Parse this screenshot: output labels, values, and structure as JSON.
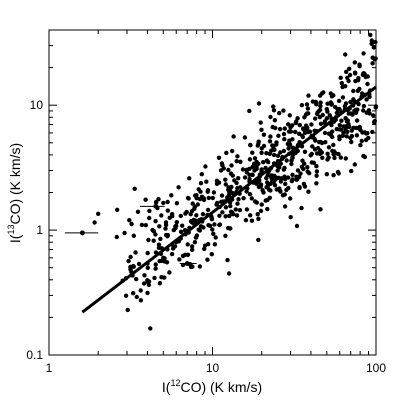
{
  "chart_data": {
    "type": "scatter",
    "title": "",
    "xlabel": {
      "prefix": "I(",
      "sup": "12",
      "suffix": "CO) (K km/s)"
    },
    "ylabel": {
      "prefix": "I(",
      "sup": "13",
      "suffix": "CO) (K km/s)"
    },
    "x_scale": "log",
    "y_scale": "log",
    "xlim": [
      1,
      100
    ],
    "ylim": [
      0.1,
      40
    ],
    "x_ticks": [
      {
        "value": 1,
        "label": "1"
      },
      {
        "value": 10,
        "label": "10"
      },
      {
        "value": 100,
        "label": "100"
      }
    ],
    "y_ticks": [
      {
        "value": 0.1,
        "label": "0.1"
      },
      {
        "value": 1,
        "label": "1"
      },
      {
        "value": 10,
        "label": "10"
      }
    ],
    "fit_line": {
      "x": [
        1.6,
        100
      ],
      "y": [
        0.22,
        14
      ]
    },
    "error_bars": [
      {
        "x": 1.6,
        "y": 0.95,
        "x_low": 1.25,
        "x_high": 2.0,
        "y_low": 0.91,
        "y_high": 0.99
      },
      {
        "x": 4.5,
        "y": 1.55,
        "x_low": 3.6,
        "x_high": 5.1,
        "y_low": 1.52,
        "y_high": 1.58
      },
      {
        "x": 7.0,
        "y": 0.54,
        "x_low": 6.3,
        "x_high": 8.0,
        "y_low": 0.53,
        "y_high": 0.55
      }
    ],
    "cloud": {
      "n": 620,
      "x_min": 2.6,
      "x_max": 100,
      "slope": 0.9,
      "intercept_at_x1": 0.18,
      "scatter_dex": 0.2
    },
    "series": [
      {
        "x": [
          1.6,
          1.9,
          2.0,
          2.6,
          2.9,
          3.1,
          3.3,
          3.5,
          3.7,
          3.9,
          4.1,
          4.3,
          4.5,
          4.6,
          4.8,
          5.0,
          5.2,
          5.3,
          5.6,
          5.8,
          6.0,
          6.2,
          6.4,
          6.6,
          6.8,
          7.0,
          7.2,
          7.5,
          7.8,
          8.0,
          8.3,
          8.6,
          9.0,
          9.4,
          9.8,
          10.2,
          10.6,
          11.0,
          11.5,
          12.0,
          12.5,
          13.0,
          13.6,
          14.2,
          14.8,
          15.5,
          16.2,
          17.0,
          17.8,
          18.6,
          19.5,
          20.5,
          21.5,
          22.6,
          23.8,
          25.0,
          26.3,
          27.7,
          29.2,
          30.8,
          32.5,
          34.4,
          36.4,
          38.5,
          40.8,
          43.2,
          45.8,
          48.6,
          51.6,
          54.8,
          58.2,
          61.8,
          65.7,
          69.8,
          74.2,
          79.0,
          84.0,
          89.0,
          94.0,
          97.0,
          99.0,
          20.0,
          27.0,
          35.0,
          50.0,
          5.0,
          3.2,
          12.0,
          8.8,
          16.0
        ],
        "y": [
          0.95,
          1.15,
          1.35,
          0.88,
          0.95,
          1.2,
          0.9,
          1.4,
          1.1,
          1.75,
          1.25,
          1.0,
          1.55,
          1.5,
          0.85,
          1.65,
          1.1,
          0.7,
          1.9,
          1.0,
          0.8,
          2.2,
          1.3,
          0.62,
          1.0,
          0.54,
          2.6,
          1.15,
          0.8,
          1.8,
          1.2,
          2.8,
          0.75,
          1.45,
          1.3,
          2.0,
          1.6,
          1.1,
          3.3,
          1.7,
          2.1,
          1.4,
          2.5,
          3.9,
          2.2,
          1.8,
          2.9,
          4.8,
          2.4,
          3.2,
          2.7,
          2.0,
          3.6,
          5.6,
          4.0,
          3.0,
          2.6,
          6.5,
          4.5,
          3.8,
          7.4,
          5.0,
          3.4,
          8.6,
          5.6,
          6.2,
          10.5,
          7.2,
          4.6,
          12.0,
          9.3,
          15.0,
          18.5,
          10.6,
          22.0,
          13.5,
          26.0,
          17.0,
          31.0,
          29.0,
          32.0,
          1.6,
          1.9,
          1.5,
          2.8,
          0.6,
          1.12,
          0.9,
          1.05,
          1.2
        ]
      }
    ]
  }
}
